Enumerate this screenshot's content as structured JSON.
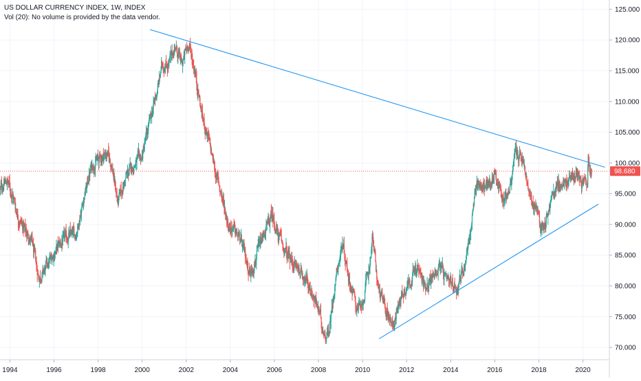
{
  "legend": {
    "title": "US DOLLAR CURRENCY INDEX, 1W, INDEX",
    "volume_note": "Vol (20): No volume is provided by the data vendor."
  },
  "colors": {
    "up": "#26a69a",
    "down": "#ef5350",
    "trendline": "#2196f3",
    "price_line": "#ef5350",
    "price_badge": "#ef5350",
    "axis_text": "#131722",
    "grid": "#f0f3fa"
  },
  "chart_data": {
    "type": "candlestick",
    "title": "US DOLLAR CURRENCY INDEX, 1W, INDEX",
    "x_unit": "year",
    "xlim": [
      1993.55,
      2021.2
    ],
    "ylim": [
      68.0,
      126.5
    ],
    "x_ticks": [
      "1994",
      "1996",
      "1998",
      "2000",
      "2002",
      "2004",
      "2006",
      "2008",
      "2010",
      "2012",
      "2014",
      "2016",
      "2018",
      "2020"
    ],
    "y_ticks": [
      "70.000",
      "75.000",
      "80.000",
      "85.000",
      "90.000",
      "95.000",
      "100.000",
      "105.000",
      "110.000",
      "115.000",
      "120.000",
      "125.000"
    ],
    "last_price": 98.68,
    "last_price_label": "98.680",
    "grid": true,
    "series": [
      {
        "kind": "price_path",
        "points": [
          [
            1993.55,
            95.5
          ],
          [
            1993.7,
            96.5
          ],
          [
            1993.9,
            97.0
          ],
          [
            1994.1,
            95.0
          ],
          [
            1994.4,
            91.0
          ],
          [
            1994.7,
            89.0
          ],
          [
            1995.0,
            87.0
          ],
          [
            1995.3,
            81.5
          ],
          [
            1995.5,
            82.0
          ],
          [
            1995.8,
            84.0
          ],
          [
            1996.2,
            86.5
          ],
          [
            1996.6,
            88.0
          ],
          [
            1997.0,
            88.5
          ],
          [
            1997.4,
            95.0
          ],
          [
            1997.7,
            99.5
          ],
          [
            1998.0,
            100.5
          ],
          [
            1998.4,
            101.5
          ],
          [
            1998.6,
            100.0
          ],
          [
            1998.9,
            93.5
          ],
          [
            1999.3,
            98.0
          ],
          [
            1999.7,
            100.0
          ],
          [
            2000.0,
            101.0
          ],
          [
            2000.3,
            106.0
          ],
          [
            2000.7,
            112.0
          ],
          [
            2000.9,
            116.0
          ],
          [
            2001.2,
            116.0
          ],
          [
            2001.5,
            119.0
          ],
          [
            2001.8,
            116.0
          ],
          [
            2002.1,
            119.5
          ],
          [
            2002.4,
            115.0
          ],
          [
            2002.7,
            108.0
          ],
          [
            2003.0,
            104.0
          ],
          [
            2003.3,
            99.0
          ],
          [
            2003.6,
            95.0
          ],
          [
            2003.9,
            90.0
          ],
          [
            2004.2,
            89.0
          ],
          [
            2004.5,
            87.0
          ],
          [
            2004.9,
            82.0
          ],
          [
            2005.3,
            86.0
          ],
          [
            2005.6,
            89.0
          ],
          [
            2005.9,
            91.5
          ],
          [
            2006.2,
            88.0
          ],
          [
            2006.5,
            85.5
          ],
          [
            2006.9,
            83.5
          ],
          [
            2007.3,
            82.0
          ],
          [
            2007.7,
            79.0
          ],
          [
            2008.0,
            76.0
          ],
          [
            2008.3,
            72.0
          ],
          [
            2008.5,
            73.0
          ],
          [
            2008.8,
            82.0
          ],
          [
            2009.1,
            87.0
          ],
          [
            2009.4,
            81.0
          ],
          [
            2009.7,
            77.0
          ],
          [
            2009.95,
            76.0
          ],
          [
            2010.3,
            83.0
          ],
          [
            2010.45,
            88.0
          ],
          [
            2010.7,
            80.0
          ],
          [
            2010.9,
            77.5
          ],
          [
            2011.2,
            75.0
          ],
          [
            2011.45,
            74.0
          ],
          [
            2011.7,
            78.0
          ],
          [
            2012.0,
            80.0
          ],
          [
            2012.5,
            83.0
          ],
          [
            2012.8,
            80.0
          ],
          [
            2013.2,
            81.5
          ],
          [
            2013.5,
            83.5
          ],
          [
            2013.8,
            80.5
          ],
          [
            2014.3,
            79.8
          ],
          [
            2014.6,
            83.0
          ],
          [
            2014.9,
            89.0
          ],
          [
            2015.2,
            97.0
          ],
          [
            2015.5,
            96.0
          ],
          [
            2015.8,
            96.5
          ],
          [
            2016.0,
            98.5
          ],
          [
            2016.4,
            94.0
          ],
          [
            2016.7,
            96.0
          ],
          [
            2016.95,
            102.0
          ],
          [
            2017.3,
            100.0
          ],
          [
            2017.6,
            94.0
          ],
          [
            2017.9,
            92.5
          ],
          [
            2018.1,
            89.5
          ],
          [
            2018.3,
            90.5
          ],
          [
            2018.6,
            94.5
          ],
          [
            2018.9,
            96.5
          ],
          [
            2019.2,
            96.5
          ],
          [
            2019.5,
            97.5
          ],
          [
            2019.8,
            98.5
          ],
          [
            2020.0,
            97.0
          ],
          [
            2020.1,
            99.0
          ],
          [
            2020.2,
            96.0
          ],
          [
            2020.25,
            101.5
          ],
          [
            2020.32,
            99.0
          ],
          [
            2020.4,
            98.68
          ]
        ]
      },
      {
        "kind": "trendline",
        "points": [
          [
            2000.35,
            121.7
          ],
          [
            2021.0,
            99.3
          ]
        ]
      },
      {
        "kind": "trendline",
        "points": [
          [
            2010.75,
            71.4
          ],
          [
            2020.7,
            93.3
          ]
        ]
      }
    ]
  }
}
